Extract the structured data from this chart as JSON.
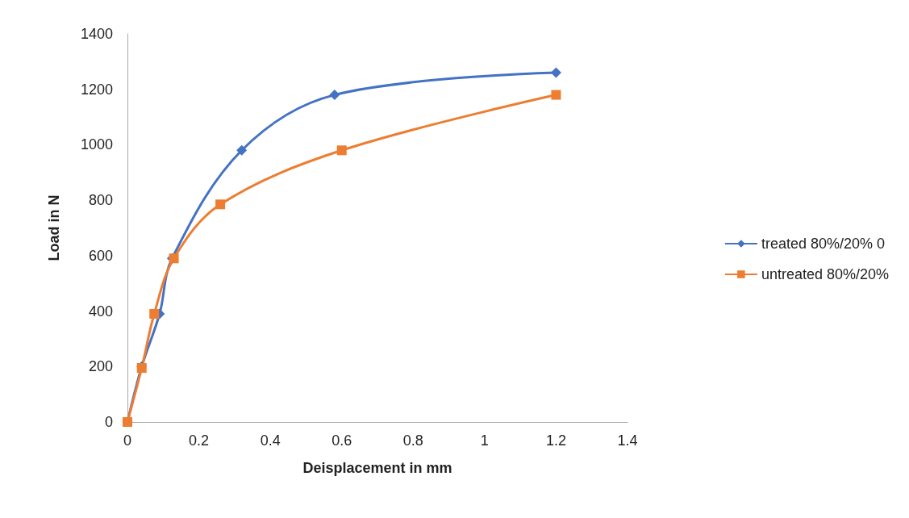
{
  "chart_data": {
    "type": "line",
    "xlabel": "Deisplacement in mm",
    "ylabel": "Load in N",
    "xlim": [
      0,
      1.4
    ],
    "xticks": [
      0,
      0.2,
      0.4,
      0.6,
      0.8,
      1,
      1.2,
      1.4
    ],
    "ylim": [
      0,
      1400
    ],
    "yticks": [
      0,
      200,
      400,
      600,
      800,
      1000,
      1200,
      1400
    ],
    "grid": false,
    "legend": "right",
    "series": [
      {
        "name": "treated 80%/20% 0",
        "color": "#4472c4",
        "marker": "diamond",
        "x": [
          0,
          0.04,
          0.09,
          0.125,
          0.32,
          0.58,
          1.2
        ],
        "values": [
          0,
          200,
          390,
          590,
          980,
          1180,
          1260
        ]
      },
      {
        "name": "untreated 80%/20%",
        "color": "#ed7d31",
        "marker": "square",
        "x": [
          0,
          0.04,
          0.075,
          0.13,
          0.26,
          0.6,
          1.2
        ],
        "values": [
          0,
          195,
          390,
          590,
          785,
          980,
          1180
        ]
      }
    ]
  }
}
